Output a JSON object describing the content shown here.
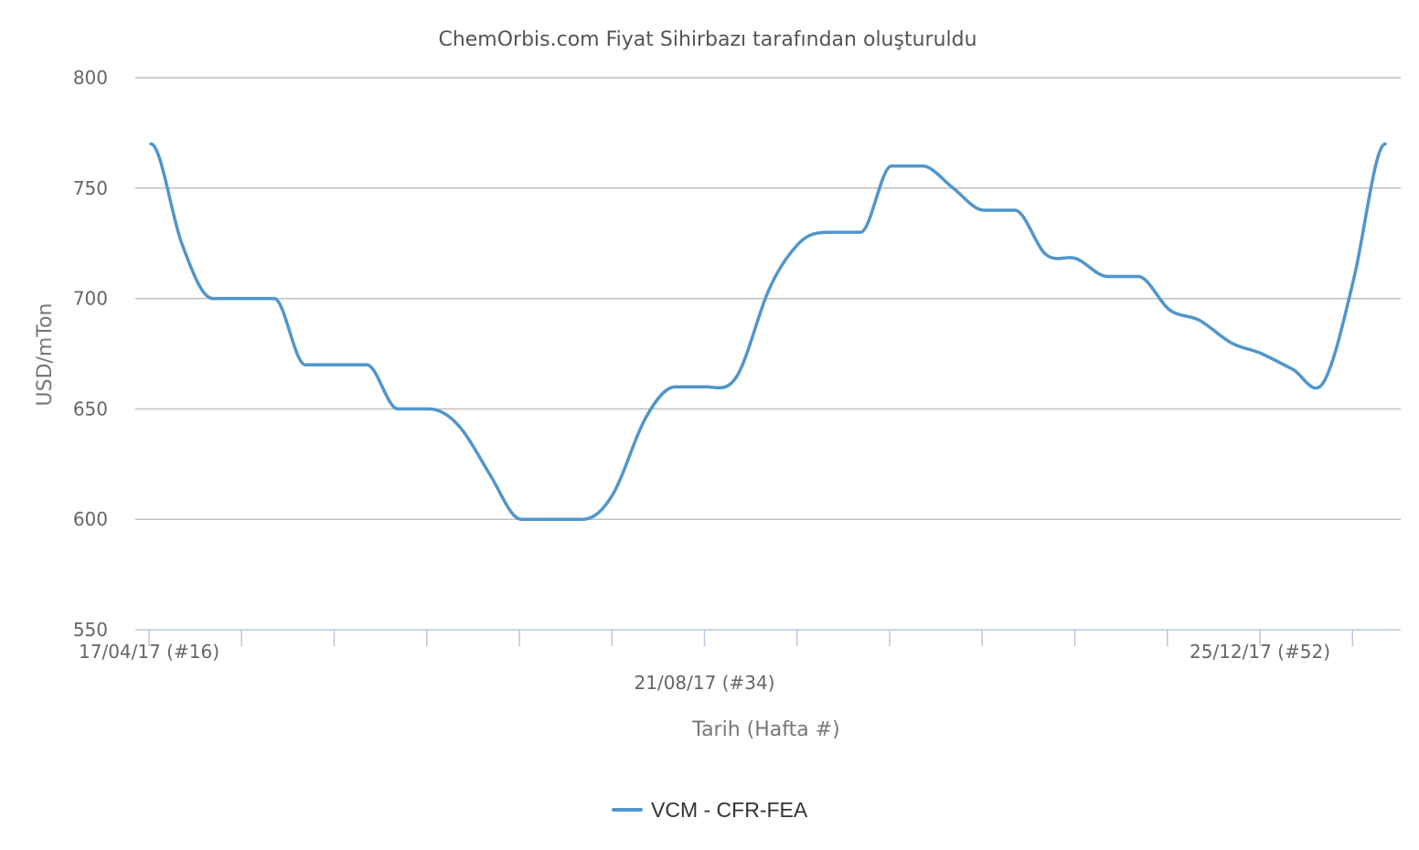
{
  "chart_data": {
    "type": "line",
    "title": "ChemOrbis.com Fiyat Sihirbazı tarafından oluşturuldu",
    "xlabel": "Tarih (Hafta #)",
    "ylabel": "USD/mTon",
    "ylim": [
      550,
      800
    ],
    "yticks": [
      550,
      600,
      650,
      700,
      750,
      800
    ],
    "grid": true,
    "legend_position": "bottom-center",
    "x_tick_labels": [
      {
        "index": 0,
        "label": "17/04/17 (#16)"
      },
      {
        "index": 18,
        "label": "21/08/17 (#34)"
      },
      {
        "index": 36,
        "label": "25/12/17 (#52)"
      }
    ],
    "num_weeks": 41,
    "series": [
      {
        "name": "VCM - CFR-FEA",
        "color": "#5096cc",
        "values": [
          770,
          725,
          700,
          700,
          700,
          670,
          670,
          670,
          650,
          650,
          642,
          620,
          600,
          600,
          600,
          612,
          645,
          660,
          660,
          665,
          703,
          725,
          730,
          730,
          760,
          760,
          750,
          740,
          740,
          720,
          718,
          710,
          710,
          695,
          690,
          680,
          675,
          668,
          662,
          710,
          770
        ]
      }
    ]
  }
}
